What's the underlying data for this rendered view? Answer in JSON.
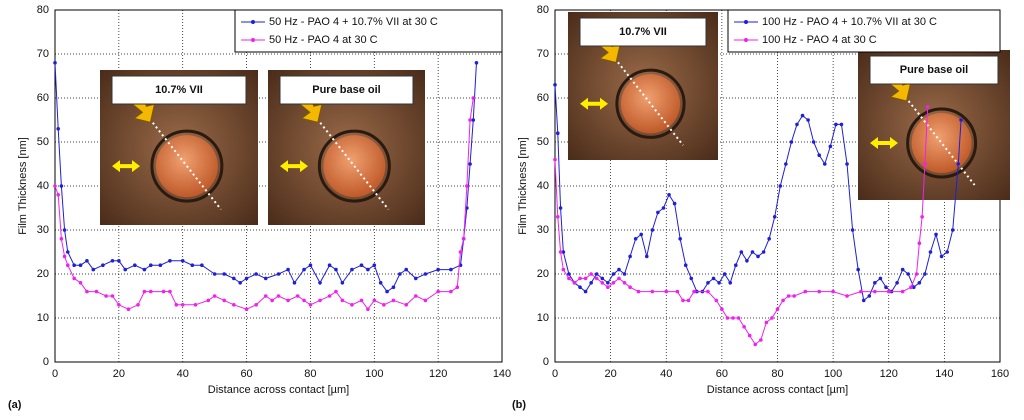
{
  "chart_data": [
    {
      "type": "line",
      "panel_label": "(a)",
      "ylabel": "Film Thickness [nm]",
      "xlabel": "Distance across contact [µm]",
      "xlim": [
        0,
        140
      ],
      "xticks": [
        0,
        20,
        40,
        60,
        80,
        100,
        120,
        140
      ],
      "ylim": [
        0,
        80
      ],
      "yticks": [
        0,
        10,
        20,
        30,
        40,
        50,
        60,
        70,
        80
      ],
      "grid": true,
      "legend": "upper right",
      "annotations": [
        "10.7% VII",
        "Pure base oil"
      ],
      "series": [
        {
          "name": "50 Hz - PAO 4 + 10.7% VII at 30 C",
          "color": "#1f1fd6",
          "x": [
            0,
            1,
            2,
            3,
            4,
            6,
            8,
            10,
            12,
            15,
            18,
            20,
            22,
            25,
            28,
            30,
            33,
            36,
            40,
            43,
            46,
            50,
            53,
            56,
            58,
            60,
            63,
            66,
            70,
            73,
            75,
            78,
            80,
            83,
            86,
            88,
            90,
            93,
            96,
            98,
            100,
            102,
            104,
            106,
            108,
            110,
            113,
            116,
            120,
            124,
            127,
            128,
            129,
            130,
            131,
            132
          ],
          "values": [
            68,
            53,
            40,
            30,
            25,
            22,
            22,
            23,
            21,
            22,
            23,
            23,
            21,
            22,
            21,
            22,
            22,
            23,
            23,
            22,
            22,
            20,
            20,
            19,
            18,
            19,
            20,
            19,
            20,
            21,
            18,
            21,
            22,
            18,
            22,
            21,
            18,
            21,
            22,
            21,
            22,
            18,
            16,
            17,
            20,
            21,
            19,
            20,
            21,
            21,
            22,
            28,
            35,
            45,
            55,
            68
          ]
        },
        {
          "name": "50 Hz - PAO 4 at 30 C",
          "color": "#ee22ee",
          "x": [
            0,
            1,
            2,
            3,
            4,
            6,
            8,
            10,
            13,
            16,
            18,
            20,
            23,
            26,
            28,
            30,
            34,
            36,
            38,
            40,
            44,
            48,
            50,
            53,
            56,
            60,
            63,
            66,
            68,
            70,
            73,
            76,
            78,
            80,
            83,
            86,
            88,
            90,
            93,
            96,
            98,
            100,
            103,
            106,
            110,
            113,
            116,
            120,
            124,
            126,
            127,
            128,
            129,
            130,
            131
          ],
          "values": [
            40,
            38,
            28,
            24,
            22,
            19,
            18,
            16,
            16,
            15,
            15,
            13,
            12,
            13,
            16,
            16,
            16,
            16,
            13,
            13,
            13,
            14,
            15,
            14,
            13,
            12,
            13,
            15,
            14,
            15,
            14,
            15,
            14,
            13,
            14,
            15,
            16,
            14,
            13,
            14,
            12,
            14,
            13,
            14,
            13,
            15,
            14,
            16,
            16,
            17,
            25,
            28,
            40,
            55,
            60
          ]
        }
      ]
    },
    {
      "type": "line",
      "panel_label": "(b)",
      "ylabel": "Film Thickness [nm]",
      "xlabel": "Distance across contact [µm]",
      "xlim": [
        0,
        160
      ],
      "xticks": [
        0,
        20,
        40,
        60,
        80,
        100,
        120,
        140,
        160
      ],
      "ylim": [
        0,
        80
      ],
      "yticks": [
        0,
        10,
        20,
        30,
        40,
        50,
        60,
        70,
        80
      ],
      "grid": true,
      "legend": "upper right",
      "annotations": [
        "10.7% VII",
        "Pure base oil"
      ],
      "series": [
        {
          "name": "100 Hz - PAO 4 + 10.7% VII at 30 C",
          "color": "#1f1fd6",
          "x": [
            0,
            1,
            2,
            3,
            5,
            7,
            9,
            11,
            13,
            15,
            17,
            19,
            21,
            23,
            25,
            27,
            29,
            31,
            33,
            35,
            37,
            39,
            41,
            43,
            45,
            47,
            49,
            51,
            53,
            55,
            57,
            59,
            61,
            63,
            65,
            67,
            69,
            71,
            73,
            75,
            77,
            79,
            81,
            83,
            85,
            87,
            89,
            91,
            93,
            95,
            97,
            99,
            101,
            103,
            105,
            107,
            109,
            111,
            113,
            115,
            117,
            119,
            121,
            123,
            125,
            127,
            129,
            131,
            133,
            135,
            137,
            139,
            141,
            143,
            145,
            146
          ],
          "values": [
            63,
            52,
            35,
            25,
            20,
            18,
            17,
            16,
            18,
            20,
            19,
            18,
            20,
            21,
            20,
            24,
            28,
            29,
            24,
            30,
            34,
            35,
            38,
            36,
            28,
            22,
            19,
            16,
            16,
            18,
            19,
            18,
            20,
            18,
            22,
            25,
            23,
            25,
            24,
            25,
            28,
            33,
            40,
            45,
            50,
            54,
            56,
            55,
            50,
            47,
            45,
            49,
            54,
            54,
            45,
            30,
            21,
            14,
            15,
            18,
            19,
            17,
            16,
            18,
            21,
            20,
            17,
            18,
            20,
            25,
            29,
            24,
            25,
            30,
            45,
            55
          ]
        },
        {
          "name": "100 Hz - PAO 4 at 30 C",
          "color": "#ee22ee",
          "x": [
            0,
            1,
            2,
            3,
            5,
            7,
            9,
            11,
            13,
            15,
            17,
            19,
            21,
            23,
            25,
            27,
            30,
            35,
            40,
            44,
            46,
            48,
            50,
            55,
            58,
            60,
            62,
            64,
            66,
            68,
            70,
            72,
            74,
            76,
            78,
            80,
            82,
            84,
            86,
            90,
            95,
            100,
            105,
            110,
            115,
            120,
            125,
            128,
            130,
            131,
            132,
            133,
            134
          ],
          "values": [
            46,
            33,
            25,
            21,
            19,
            18,
            19,
            19,
            20,
            19,
            18,
            17,
            18,
            19,
            18,
            17,
            16,
            16,
            16,
            16,
            14,
            14,
            16,
            16,
            14,
            12,
            10,
            10,
            10,
            8,
            6,
            4,
            5,
            9,
            10,
            12,
            14,
            15,
            15,
            16,
            16,
            16,
            15,
            16,
            16,
            16,
            16,
            17,
            20,
            27,
            33,
            45,
            58
          ]
        }
      ]
    }
  ]
}
